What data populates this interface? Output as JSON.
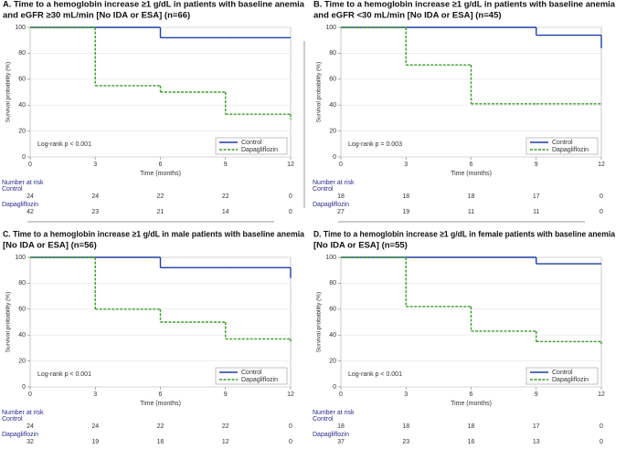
{
  "chart_data": [
    {
      "type": "step",
      "title": [
        "A. Time to a hemoglobin increase ≥1 g/dL in patients with baseline anemia",
        "and eGFR ≥30 mL/min [No IDA or ESA] (n=66)"
      ],
      "x_label": "Time (months)",
      "y_label": "Survival probability (%)",
      "annotation": "Log-rank   p < 0.001",
      "x": [
        0,
        3,
        6,
        9,
        12
      ],
      "xlim": [
        0,
        12
      ],
      "xticks": [
        0,
        3,
        6,
        9,
        12
      ],
      "ylim": [
        0,
        100
      ],
      "yticks": [
        0,
        20,
        40,
        60,
        80,
        100
      ],
      "grid": true,
      "legend": "lower right",
      "series": [
        {
          "name": "Control",
          "color": "#1f3f9f",
          "values": [
            100,
            100,
            92,
            92,
            92
          ]
        },
        {
          "name": "Dapagliflozin",
          "color": "#3a9a2a",
          "values": [
            100,
            55,
            50,
            33,
            29
          ]
        }
      ],
      "risk_table": {
        "title": "Number at risk",
        "rows": [
          [
            24,
            24,
            22,
            22,
            0
          ],
          [
            42,
            23,
            21,
            14,
            0
          ]
        ]
      }
    },
    {
      "type": "step",
      "title": [
        "B. Time to a hemoglobin increase ≥1 g/dL in patients with baseline anemia",
        "and eGFR <30 mL/min [No IDA or ESA] (n=45)"
      ],
      "x_label": "Time (months)",
      "y_label": "Survival probability (%)",
      "annotation": "Log-rank   p = 0.003",
      "x": [
        0,
        3,
        6,
        9,
        12
      ],
      "xlim": [
        0,
        12
      ],
      "xticks": [
        0,
        3,
        6,
        9,
        12
      ],
      "ylim": [
        0,
        100
      ],
      "yticks": [
        0,
        20,
        40,
        60,
        80,
        100
      ],
      "grid": true,
      "legend": "lower right",
      "series": [
        {
          "name": "Control",
          "color": "#1f3f9f",
          "values": [
            100,
            100,
            100,
            94,
            84
          ]
        },
        {
          "name": "Dapagliflozin",
          "color": "#3a9a2a",
          "values": [
            100,
            71,
            41,
            41,
            41
          ]
        }
      ],
      "risk_table": {
        "title": "Number at risk",
        "rows": [
          [
            18,
            18,
            18,
            17,
            0
          ],
          [
            27,
            19,
            11,
            11,
            0
          ]
        ]
      }
    },
    {
      "type": "step",
      "title": [
        "C. Time to a hemoglobin increase ≥1 g/dL in male patients with baseline anemia",
        "[No IDA or ESA] (n=56)"
      ],
      "x_label": "Time (months)",
      "y_label": "Survival probability (%)",
      "annotation": "Log-rank   p < 0.001",
      "x": [
        0,
        3,
        6,
        9,
        12
      ],
      "xlim": [
        0,
        12
      ],
      "xticks": [
        0,
        3,
        6,
        9,
        12
      ],
      "ylim": [
        0,
        100
      ],
      "yticks": [
        0,
        20,
        40,
        60,
        80,
        100
      ],
      "grid": true,
      "legend": "lower right",
      "series": [
        {
          "name": "Control",
          "color": "#1f3f9f",
          "values": [
            100,
            100,
            92,
            92,
            84
          ]
        },
        {
          "name": "Dapagliflozin",
          "color": "#3a9a2a",
          "values": [
            100,
            60,
            50,
            37,
            35
          ]
        }
      ],
      "risk_table": {
        "title": "Number at risk",
        "rows": [
          [
            24,
            24,
            22,
            22,
            0
          ],
          [
            32,
            19,
            16,
            12,
            0
          ]
        ]
      }
    },
    {
      "type": "step",
      "title": [
        "D. Time to a hemoglobin increase ≥1 g/dL in female patients with baseline anemia",
        "[No IDA or ESA] (n=55)"
      ],
      "x_label": "Time (months)",
      "y_label": "Survival probability (%)",
      "annotation": "Log-rank   p < 0.001",
      "x": [
        0,
        3,
        6,
        9,
        12
      ],
      "xlim": [
        0,
        12
      ],
      "xticks": [
        0,
        3,
        6,
        9,
        12
      ],
      "ylim": [
        0,
        100
      ],
      "yticks": [
        0,
        20,
        40,
        60,
        80,
        100
      ],
      "grid": true,
      "legend": "lower right",
      "series": [
        {
          "name": "Control",
          "color": "#1f3f9f",
          "values": [
            100,
            100,
            100,
            95,
            95
          ]
        },
        {
          "name": "Dapagliflozin",
          "color": "#3a9a2a",
          "values": [
            100,
            62,
            43,
            35,
            33
          ]
        }
      ],
      "risk_table": {
        "title": "Number at risk",
        "rows": [
          [
            18,
            18,
            18,
            17,
            0
          ],
          [
            37,
            23,
            16,
            13,
            0
          ]
        ]
      }
    }
  ]
}
